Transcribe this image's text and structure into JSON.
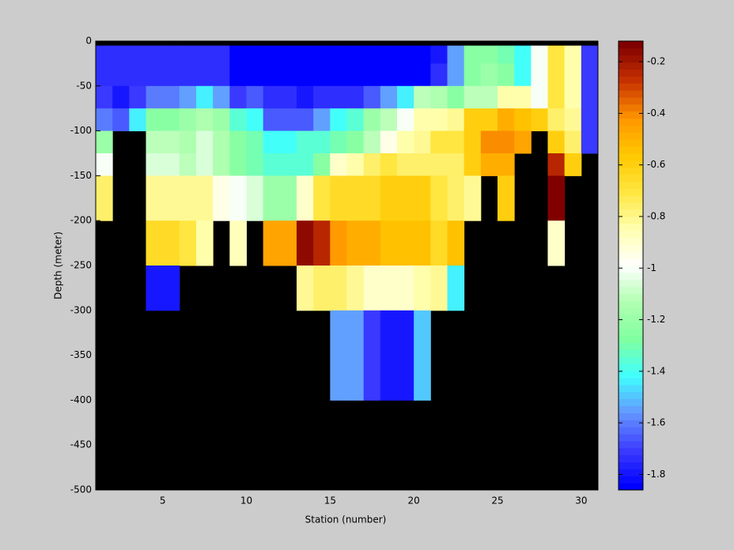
{
  "chart_data": {
    "type": "heatmap",
    "xlabel": "Station (number)",
    "ylabel": "Depth (meter)",
    "x_edges": [
      1,
      2,
      3,
      4,
      5,
      6,
      7,
      8,
      9,
      10,
      11,
      12,
      13,
      14,
      15,
      16,
      17,
      18,
      19,
      20,
      21,
      22,
      23,
      24,
      25,
      26,
      27,
      28,
      29,
      30,
      31
    ],
    "y_edges": [
      -5,
      -25,
      -50,
      -75,
      -100,
      -125,
      -150,
      -200,
      -250,
      -300,
      -400,
      -500
    ],
    "values": [
      [
        -1.75,
        -1.75,
        -1.75,
        -1.75,
        -1.75,
        -1.75,
        -1.75,
        -1.75,
        -1.84,
        -1.84,
        -1.84,
        -1.84,
        -1.84,
        -1.84,
        -1.84,
        -1.84,
        -1.84,
        -1.84,
        -1.84,
        -1.84,
        -1.8,
        -1.55,
        -1.25,
        -1.25,
        -1.3,
        -1.4,
        -1.0,
        -0.7,
        -0.85,
        -1.7
      ],
      [
        -1.75,
        -1.75,
        -1.75,
        -1.75,
        -1.75,
        -1.75,
        -1.75,
        -1.75,
        -1.84,
        -1.84,
        -1.84,
        -1.84,
        -1.84,
        -1.84,
        -1.84,
        -1.84,
        -1.84,
        -1.84,
        -1.84,
        -1.84,
        -1.75,
        -1.55,
        -1.25,
        -1.2,
        -1.25,
        -1.4,
        -1.0,
        -0.7,
        -0.85,
        -1.7
      ],
      [
        -1.7,
        -1.8,
        -1.7,
        -1.6,
        -1.6,
        -1.55,
        -1.45,
        -1.55,
        -1.7,
        -1.65,
        -1.75,
        -1.75,
        -1.8,
        -1.75,
        -1.75,
        -1.75,
        -1.65,
        -1.55,
        -1.45,
        -1.1,
        -1.15,
        -1.25,
        -1.1,
        -1.1,
        -0.85,
        -0.85,
        -1.0,
        -0.7,
        -0.85,
        -1.7
      ],
      [
        -1.6,
        -1.65,
        -1.45,
        -1.25,
        -1.25,
        -1.2,
        -1.15,
        -1.2,
        -1.35,
        -1.4,
        -1.65,
        -1.65,
        -1.65,
        -1.55,
        -1.4,
        -1.35,
        -1.2,
        -1.1,
        -1.0,
        -0.85,
        -0.85,
        -0.8,
        -0.6,
        -0.6,
        -0.5,
        -0.55,
        -0.6,
        -0.75,
        -0.8,
        -1.7
      ],
      [
        -1.2,
        null,
        null,
        -1.1,
        -1.1,
        -1.15,
        -1.05,
        -1.15,
        -1.25,
        -1.3,
        -1.4,
        -1.4,
        -1.35,
        -1.35,
        -1.3,
        -1.25,
        -1.1,
        -0.95,
        -0.85,
        -0.8,
        -0.7,
        -0.7,
        -0.6,
        -0.4,
        -0.4,
        -0.45,
        null,
        -0.6,
        -0.75,
        -1.7
      ],
      [
        -1.0,
        null,
        null,
        -1.05,
        -1.05,
        -1.1,
        -1.05,
        -1.15,
        -1.25,
        -1.3,
        -1.35,
        -1.35,
        -1.35,
        -1.25,
        -0.9,
        -0.85,
        -0.75,
        -0.7,
        -0.75,
        -0.75,
        -0.75,
        -0.75,
        -0.6,
        -0.5,
        -0.5,
        null,
        null,
        -0.25,
        -0.6,
        null
      ],
      [
        -0.75,
        null,
        null,
        -0.8,
        -0.8,
        -0.8,
        -0.8,
        -0.95,
        -1.0,
        -1.05,
        -1.2,
        -1.2,
        -0.9,
        -0.7,
        -0.65,
        -0.65,
        -0.65,
        -0.6,
        -0.6,
        -0.6,
        -0.7,
        -0.75,
        -0.8,
        null,
        -0.6,
        null,
        null,
        -0.12,
        null,
        null
      ],
      [
        null,
        null,
        null,
        -0.65,
        -0.65,
        -0.7,
        -0.85,
        null,
        -0.88,
        null,
        -0.45,
        -0.45,
        -0.15,
        -0.25,
        -0.42,
        -0.5,
        -0.5,
        -0.55,
        -0.55,
        -0.55,
        -0.65,
        -0.55,
        null,
        null,
        null,
        null,
        null,
        -0.9,
        null,
        null
      ],
      [
        null,
        null,
        null,
        -1.8,
        -1.8,
        null,
        null,
        null,
        null,
        null,
        null,
        null,
        -0.8,
        -0.75,
        -0.75,
        -0.8,
        -0.9,
        -0.9,
        -0.9,
        -0.85,
        -0.8,
        -1.45,
        null,
        null,
        null,
        null,
        null,
        null,
        null,
        null
      ],
      [
        null,
        null,
        null,
        null,
        null,
        null,
        null,
        null,
        null,
        null,
        null,
        null,
        null,
        null,
        -1.55,
        -1.55,
        -1.7,
        -1.8,
        -1.8,
        -1.5,
        null,
        null,
        null,
        null,
        null,
        null,
        null,
        null,
        null,
        null
      ],
      [
        null,
        null,
        null,
        null,
        null,
        null,
        null,
        null,
        null,
        null,
        null,
        null,
        null,
        null,
        null,
        null,
        null,
        null,
        null,
        null,
        null,
        null,
        null,
        null,
        null,
        null,
        null,
        null,
        null,
        null
      ]
    ],
    "xlim": [
      1,
      31
    ],
    "ylim": [
      -500,
      0
    ],
    "xticks": [
      5,
      10,
      15,
      20,
      25,
      30
    ],
    "yticks": [
      0,
      -50,
      -100,
      -150,
      -200,
      -250,
      -300,
      -350,
      -400,
      -450,
      -500
    ],
    "clim": [
      -1.86,
      -0.12
    ],
    "cticks": [
      -1.8,
      -1.6,
      -1.4,
      -1.2,
      -1,
      -0.8,
      -0.6,
      -0.4,
      -0.2
    ],
    "colormap": [
      "#0000ff",
      "#3c3cff",
      "#6496ff",
      "#40ffff",
      "#80ffa0",
      "#b0ffb0",
      "#ffffff",
      "#ffffb0",
      "#ffe640",
      "#ffc800",
      "#ff9600",
      "#c83200",
      "#800000"
    ],
    "levels": 64,
    "background": "#000000"
  }
}
